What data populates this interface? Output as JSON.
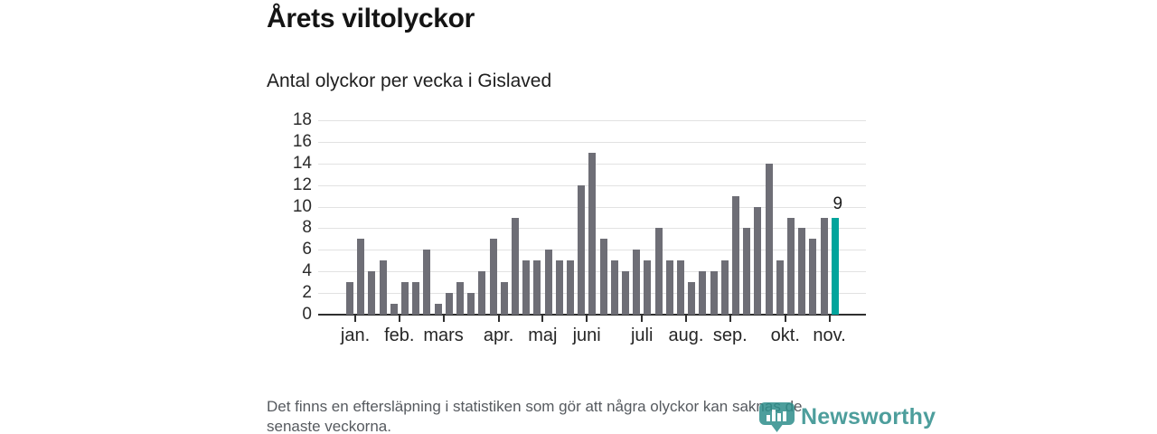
{
  "header": {
    "title": "Årets viltolyckor",
    "subtitle": "Antal olyckor per vecka i Gislaved"
  },
  "chart_data": {
    "type": "bar",
    "title": "Antal olyckor per vecka i Gislaved",
    "xlabel": "",
    "ylabel": "",
    "x_unit": "vecka",
    "x": [
      1,
      2,
      3,
      4,
      5,
      6,
      7,
      8,
      9,
      10,
      11,
      12,
      13,
      14,
      15,
      16,
      17,
      18,
      19,
      20,
      21,
      22,
      23,
      24,
      25,
      26,
      27,
      28,
      29,
      30,
      31,
      32,
      33,
      34,
      35,
      36,
      37,
      38,
      39,
      40,
      41,
      42,
      43,
      44,
      45
    ],
    "values": [
      3,
      7,
      4,
      5,
      1,
      3,
      3,
      6,
      1,
      2,
      3,
      2,
      4,
      7,
      3,
      9,
      5,
      5,
      6,
      5,
      5,
      12,
      15,
      7,
      5,
      4,
      6,
      5,
      8,
      5,
      5,
      3,
      4,
      4,
      5,
      11,
      8,
      10,
      14,
      5,
      9,
      8,
      7,
      9,
      9
    ],
    "highlight_last_bar": true,
    "last_value_label": "9",
    "ylim": [
      0,
      18
    ],
    "y_ticks": [
      0,
      2,
      4,
      6,
      8,
      10,
      12,
      14,
      16,
      18
    ],
    "grid": true,
    "legend_position": "none",
    "month_ticks": [
      {
        "label": "jan.",
        "week": 1
      },
      {
        "label": "feb.",
        "week": 5
      },
      {
        "label": "mars",
        "week": 9
      },
      {
        "label": "apr.",
        "week": 14
      },
      {
        "label": "maj",
        "week": 18
      },
      {
        "label": "juni",
        "week": 22
      },
      {
        "label": "juli",
        "week": 27
      },
      {
        "label": "aug.",
        "week": 31
      },
      {
        "label": "sep.",
        "week": 35
      },
      {
        "label": "okt.",
        "week": 40
      },
      {
        "label": "nov.",
        "week": 44
      }
    ],
    "colors": {
      "bar": "#6e6e76",
      "highlight": "#00a49c",
      "gridline": "#e2e2e2",
      "axis": "#2f2f2f"
    }
  },
  "footer": {
    "note_line1": "Det finns en eftersläpning i statistiken som gör att några olyckor kan saknas de",
    "note_line2": "senaste veckorna."
  },
  "logo": {
    "text": "Newsworthy",
    "color": "#2f8e8b"
  }
}
